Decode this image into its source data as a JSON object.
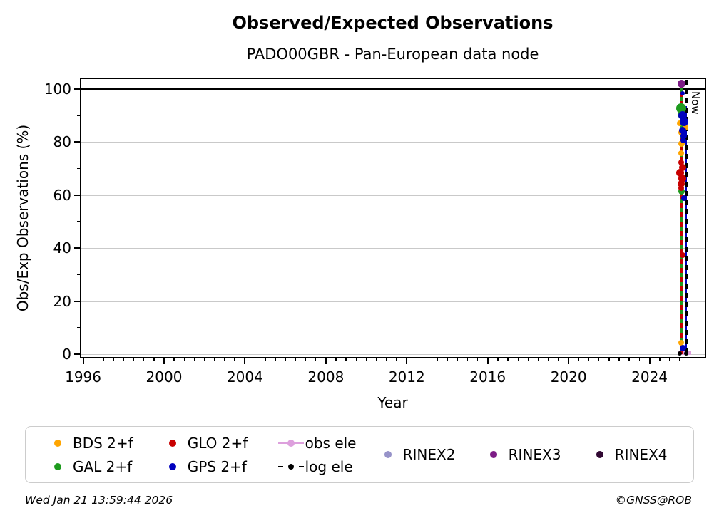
{
  "title": "Observed/Expected Observations",
  "subtitle": "PADO00GBR - Pan-European data node",
  "footer": {
    "left": "Wed Jan 21 13:59:44 2026",
    "right": "©GNSS@ROB"
  },
  "colors": {
    "bds": "#FFA500",
    "gal": "#1E9B1E",
    "glo": "#C80000",
    "gps": "#0000BE",
    "obs_ele": "#DDA0DD",
    "log_ele": "#000000",
    "rinex2": "#9793C9",
    "rinex3": "#7D1C86",
    "rinex4": "#310833",
    "grid": "#C9C9C9",
    "axis": "#000000"
  },
  "legend": {
    "items": [
      {
        "label": "BDS 2+f",
        "swatch": "dot",
        "color": "bds"
      },
      {
        "label": "GAL 2+f",
        "swatch": "dot",
        "color": "gal"
      },
      {
        "label": "GLO 2+f",
        "swatch": "dot",
        "color": "glo"
      },
      {
        "label": "GPS 2+f",
        "swatch": "dot",
        "color": "gps"
      },
      {
        "label": "obs ele",
        "swatch": "line-dot",
        "color": "obs_ele"
      },
      {
        "label": "log ele",
        "swatch": "dashdot",
        "color": "log_ele"
      },
      {
        "label": "RINEX2",
        "swatch": "dot",
        "color": "rinex2"
      },
      {
        "label": "RINEX3",
        "swatch": "dot",
        "color": "rinex3"
      },
      {
        "label": "RINEX4",
        "swatch": "dot",
        "color": "rinex4"
      }
    ]
  },
  "chart_data": {
    "type": "scatter",
    "title": "Observed/Expected Observations",
    "subtitle": "PADO00GBR - Pan-European data node",
    "xlabel": "Year",
    "ylabel": "Obs/Exp Observations (%)",
    "x_axis": {
      "range": [
        1995.91,
        2026.73
      ],
      "major_ticks": [
        1996,
        2000,
        2004,
        2008,
        2012,
        2016,
        2020,
        2024
      ],
      "major_tick_labels": [
        "1996",
        "2000",
        "2004",
        "2008",
        "2012",
        "2016",
        "2020",
        "2024"
      ],
      "minor_step": 0.5
    },
    "y_axis": {
      "range": [
        -1.1,
        103.75
      ],
      "major_ticks": [
        0,
        20,
        40,
        60,
        80,
        100
      ],
      "major_tick_labels": [
        "0",
        "20",
        "40",
        "60",
        "80",
        "100"
      ],
      "minor_ticks": [
        10,
        30,
        50,
        70,
        90
      ]
    },
    "grid": "horizontal-major-light-gray",
    "reference_lines": {
      "full_ratio_line_pct": 100,
      "now_marker": {
        "label": "Now",
        "x_year": 2025.84,
        "style": "dashed-black"
      }
    },
    "trace_lines": [
      {
        "name": "gal-trace",
        "color": "gal",
        "x_year": 2025.57,
        "pct_from": 0,
        "pct_to": 102.3,
        "style": "solid",
        "width": 3
      },
      {
        "name": "glo-trace",
        "color": "glo",
        "x_year": 2025.57,
        "pct_from": 0,
        "pct_to": 102.3,
        "style": "dashed",
        "width": 3
      },
      {
        "name": "gps-trace",
        "color": "gps",
        "x_year": 2025.8,
        "pct_from": 0,
        "pct_to": 93.5,
        "style": "solid",
        "width": 3
      },
      {
        "name": "now-line",
        "color": "log_ele",
        "x_year": 2025.84,
        "pct_from": -1.0,
        "pct_to": 103.6,
        "style": "dashed",
        "width": 3
      }
    ],
    "ele_lines": [
      {
        "name": "obs-ele-line",
        "color": "obs_ele",
        "y_pct": 0.3,
        "x_from": 2025.38,
        "x_to": 2026.07,
        "width": 5
      }
    ],
    "series": [
      {
        "name": "BDS 2+f",
        "color": "bds",
        "marker": "circle",
        "points": [
          {
            "year": 2025.48,
            "pct": 87.0,
            "size": 8
          },
          {
            "year": 2025.78,
            "pct": 85.5,
            "size": 8
          },
          {
            "year": 2025.55,
            "pct": 83.5,
            "size": 8
          },
          {
            "year": 2025.6,
            "pct": 79.3,
            "size": 9
          },
          {
            "year": 2025.57,
            "pct": 75.8,
            "size": 8
          },
          {
            "year": 2025.55,
            "pct": 4.3,
            "size": 8
          }
        ]
      },
      {
        "name": "GAL 2+f",
        "color": "gal",
        "marker": "circle",
        "points": [
          {
            "year": 2025.57,
            "pct": 92.8,
            "size": 14
          },
          {
            "year": 2025.57,
            "pct": 90.3,
            "size": 10
          },
          {
            "year": 2025.62,
            "pct": 84.8,
            "size": 7
          },
          {
            "year": 2025.57,
            "pct": 61.3,
            "size": 9
          }
        ]
      },
      {
        "name": "GLO 2+f",
        "color": "glo",
        "marker": "circle",
        "points": [
          {
            "year": 2025.57,
            "pct": 72.2,
            "size": 8
          },
          {
            "year": 2025.62,
            "pct": 70.3,
            "size": 10
          },
          {
            "year": 2025.53,
            "pct": 68.3,
            "size": 11
          },
          {
            "year": 2025.62,
            "pct": 66.2,
            "size": 11
          },
          {
            "year": 2025.57,
            "pct": 64.3,
            "size": 10
          },
          {
            "year": 2025.55,
            "pct": 62.5,
            "size": 8
          },
          {
            "year": 2025.62,
            "pct": 37.3,
            "size": 8
          }
        ]
      },
      {
        "name": "GPS 2+f",
        "color": "gps",
        "marker": "circle",
        "points": [
          {
            "year": 2025.64,
            "pct": 98.5,
            "size": 6
          },
          {
            "year": 2025.64,
            "pct": 90.0,
            "size": 12
          },
          {
            "year": 2025.69,
            "pct": 87.5,
            "size": 12
          },
          {
            "year": 2025.64,
            "pct": 84.5,
            "size": 10
          },
          {
            "year": 2025.69,
            "pct": 82.3,
            "size": 9
          },
          {
            "year": 2025.66,
            "pct": 80.5,
            "size": 8
          },
          {
            "year": 2025.71,
            "pct": 58.8,
            "size": 8
          },
          {
            "year": 2025.66,
            "pct": 2.2,
            "size": 9
          }
        ]
      },
      {
        "name": "RINEX3",
        "color": "rinex3",
        "marker": "circle",
        "points": [
          {
            "year": 2025.6,
            "pct": 102.0,
            "size": 11
          }
        ]
      },
      {
        "name": "log ele",
        "color": "log_ele",
        "marker": "circle",
        "points": [
          {
            "year": 2025.5,
            "pct": 0.3,
            "size": 6
          },
          {
            "year": 2025.8,
            "pct": 0.3,
            "size": 6
          }
        ]
      }
    ]
  }
}
